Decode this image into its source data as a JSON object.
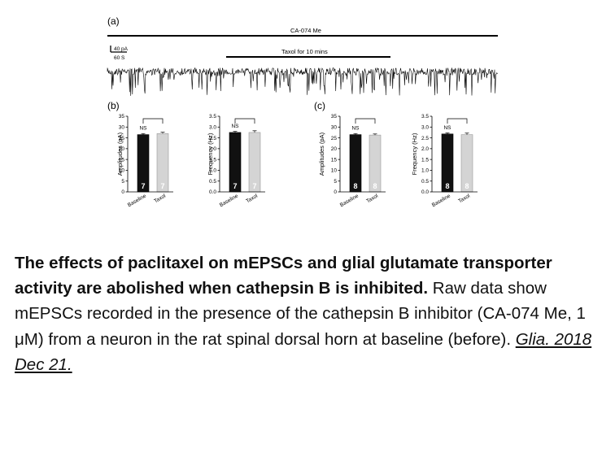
{
  "panel_a": {
    "label": "(a)",
    "drug_bar_label": "CA-074 Me",
    "scale_bar": {
      "y_label": "40 pA",
      "x_label": "60 S"
    },
    "treatment_bar_label": "Taxol for 10 mins"
  },
  "panel_b_label": "(b)",
  "panel_c_label": "(c)",
  "chart_data": [
    {
      "type": "bar",
      "panel": "(b)",
      "categories": [
        "Baseline",
        "Taxol"
      ],
      "values": [
        26.5,
        27.0
      ],
      "errors": [
        0.5,
        0.6
      ],
      "n": [
        "7",
        "7"
      ],
      "ylabel": "Amplitudes (pA)",
      "ylim": [
        0,
        35
      ],
      "yticks": [
        "0",
        "5",
        "10",
        "15",
        "20",
        "25",
        "30",
        "35"
      ],
      "annotation": "NS",
      "colors": [
        "#111111",
        "#d4d4d4"
      ]
    },
    {
      "type": "bar",
      "panel": "(b)",
      "categories": [
        "Baseline",
        "Taxol"
      ],
      "values": [
        2.75,
        2.75
      ],
      "errors": [
        0.05,
        0.08
      ],
      "n": [
        "7",
        "7"
      ],
      "ylabel": "Frequency (Hz)",
      "ylim": [
        0,
        3.5
      ],
      "yticks": [
        "0.0",
        "0.5",
        "1.0",
        "1.5",
        "2.0",
        "2.5",
        "3.0",
        "3.5"
      ],
      "annotation": "NS",
      "colors": [
        "#111111",
        "#d4d4d4"
      ]
    },
    {
      "type": "bar",
      "panel": "(c)",
      "categories": [
        "Baseline",
        "Taxol"
      ],
      "values": [
        26.5,
        26.3
      ],
      "errors": [
        0.5,
        0.5
      ],
      "n": [
        "8",
        "8"
      ],
      "ylabel": "Amplitudes (pA)",
      "ylim": [
        0,
        35
      ],
      "yticks": [
        "0",
        "5",
        "10",
        "15",
        "20",
        "25",
        "30",
        "35"
      ],
      "annotation": "NS",
      "colors": [
        "#111111",
        "#d4d4d4"
      ]
    },
    {
      "type": "bar",
      "panel": "(c)",
      "categories": [
        "Baseline",
        "Taxol"
      ],
      "values": [
        2.68,
        2.65
      ],
      "errors": [
        0.05,
        0.07
      ],
      "n": [
        "8",
        "8"
      ],
      "ylabel": "Frequency (Hz)",
      "ylim": [
        0,
        3.5
      ],
      "yticks": [
        "0.0",
        "0.5",
        "1.0",
        "1.5",
        "2.0",
        "2.5",
        "3.0",
        "3.5"
      ],
      "annotation": "NS",
      "colors": [
        "#111111",
        "#d4d4d4"
      ]
    }
  ],
  "caption": {
    "title": "The effects of paclitaxel on mEPSCs and glial glutamate transporter activity are abolished when cathepsin B is inhibited.",
    "body": " Raw data show mEPSCs recorded in the presence of the cathepsin B inhibitor (CA-074 Me, 1 μM) from a neuron in the rat spinal dorsal horn at baseline (before). ",
    "citation": "Glia. 2018 Dec 21."
  }
}
